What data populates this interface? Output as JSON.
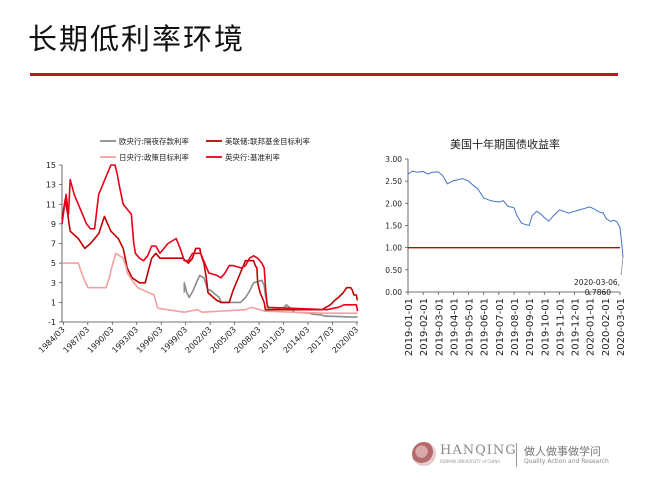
{
  "page": {
    "title": "长期低利率环境"
  },
  "footer": {
    "brand": "HANQING",
    "brand_sub": "RENMIN UNIVERSITY of CHINA",
    "slogan_cn": "做人做事做学问",
    "slogan_en": "Quality Action and Research"
  },
  "chart_data": [
    {
      "type": "line",
      "title": "",
      "xlabel": "",
      "ylabel": "",
      "ylim": [
        -1,
        15
      ],
      "yticks": [
        -1,
        1,
        3,
        5,
        7,
        9,
        11,
        13,
        15
      ],
      "x_ticks": [
        "1984/03",
        "1987/03",
        "1990/03",
        "1993/03",
        "1996/03",
        "1999/03",
        "2002/03",
        "2005/03",
        "2008/03",
        "2011/03",
        "2014/03",
        "2017/03",
        "2020/03"
      ],
      "legend_position": "top",
      "series": [
        {
          "name": "欧央行:隔夜存款利率",
          "color": "#8c8c8c",
          "x": [
            1999.0,
            1999.0,
            1999.3,
            1999.6,
            2000.1,
            2000.6,
            2000.9,
            2001.4,
            2001.9,
            2002.2,
            2002.9,
            2003.3,
            2003.5,
            2005.9,
            2006.2,
            2006.5,
            2006.9,
            2007.2,
            2007.5,
            2008.5,
            2008.8,
            2008.9,
            2009.1,
            2009.4,
            2011.3,
            2011.5,
            2011.9,
            2012.5,
            2014.4,
            2014.7,
            2015.9,
            2016.2,
            2019.7,
            2020.25
          ],
          "y": [
            2.0,
            3.0,
            2.0,
            1.5,
            2.25,
            3.25,
            3.75,
            3.5,
            2.25,
            2.25,
            1.75,
            1.5,
            1.0,
            1.0,
            1.25,
            1.5,
            2.0,
            2.5,
            3.0,
            3.25,
            2.75,
            2.0,
            1.0,
            0.25,
            0.5,
            0.75,
            0.5,
            0.0,
            -0.1,
            -0.2,
            -0.3,
            -0.4,
            -0.5,
            -0.5
          ]
        },
        {
          "name": "美联储:联邦基金目标利率",
          "color": "#c00000",
          "x": [
            1984.0,
            1984.4,
            1984.7,
            1985.0,
            1986.0,
            1986.8,
            1987.5,
            1988.5,
            1989.2,
            1989.6,
            1990.0,
            1990.9,
            1991.5,
            1992.0,
            1992.6,
            1993.5,
            1994.2,
            1994.6,
            1995.0,
            1995.5,
            1996.0,
            1998.8,
            1999.5,
            2000.0,
            2000.4,
            2000.9,
            2001.0,
            2001.4,
            2001.7,
            2001.9,
            2002.9,
            2003.5,
            2004.5,
            2005.0,
            2005.5,
            2006.0,
            2006.5,
            2007.5,
            2007.7,
            2007.9,
            2008.0,
            2008.3,
            2008.8,
            2008.95,
            2015.9,
            2016.9,
            2017.2,
            2017.5,
            2017.9,
            2018.2,
            2018.5,
            2018.9,
            2019.4,
            2019.6,
            2019.8,
            2020.1,
            2020.2,
            2020.25
          ],
          "y": [
            9.5,
            11.5,
            10.0,
            8.25,
            7.5,
            6.5,
            7.0,
            8.0,
            9.75,
            9.0,
            8.25,
            7.5,
            6.5,
            4.5,
            3.5,
            3.0,
            3.0,
            4.25,
            5.5,
            6.0,
            5.5,
            5.5,
            5.0,
            5.5,
            6.5,
            6.5,
            6.0,
            5.0,
            3.5,
            2.0,
            1.25,
            1.0,
            1.0,
            2.25,
            3.25,
            4.25,
            5.25,
            5.25,
            4.75,
            4.5,
            3.0,
            2.0,
            1.0,
            0.25,
            0.25,
            0.75,
            1.0,
            1.25,
            1.5,
            1.75,
            2.0,
            2.5,
            2.5,
            2.25,
            1.75,
            1.75,
            1.25,
            1.25
          ]
        },
        {
          "name": "日央行:政策目标利率",
          "color": "#f4a0a0",
          "x": [
            1984.0,
            1986.0,
            1986.2,
            1986.4,
            1986.9,
            1987.2,
            1989.4,
            1989.9,
            1990.0,
            1990.6,
            1991.5,
            1991.9,
            1992.0,
            1992.6,
            1993.3,
            1995.3,
            1995.7,
            1995.8,
            1999.0,
            2000.6,
            2001.2,
            2006.5,
            2007.2,
            2008.9,
            2016.1,
            2020.25
          ],
          "y": [
            5.0,
            5.0,
            4.5,
            4.0,
            3.0,
            2.5,
            2.5,
            3.75,
            4.25,
            6.0,
            5.5,
            4.5,
            4.0,
            3.25,
            2.5,
            1.75,
            0.5,
            0.4,
            0.0,
            0.25,
            0.0,
            0.25,
            0.5,
            0.1,
            -0.1,
            -0.1
          ]
        },
        {
          "name": "英央行:基准利率",
          "color": "#e8001b",
          "x": [
            1984.0,
            1984.5,
            1984.8,
            1985.0,
            1985.5,
            1986.0,
            1986.5,
            1987.0,
            1987.5,
            1988.0,
            1988.5,
            1989.0,
            1989.5,
            1990.0,
            1990.5,
            1990.8,
            1991.0,
            1991.5,
            1992.0,
            1992.5,
            1992.8,
            1993.0,
            1993.5,
            1994.0,
            1994.5,
            1995.0,
            1995.5,
            1996.0,
            1997.0,
            1997.5,
            1998.0,
            1998.5,
            1999.0,
            1999.5,
            2000.0,
            2001.0,
            2001.5,
            2002.0,
            2003.0,
            2003.5,
            2004.0,
            2004.5,
            2005.0,
            2006.0,
            2006.5,
            2007.0,
            2007.5,
            2008.0,
            2008.5,
            2008.8,
            2009.0,
            2009.2,
            2016.5,
            2017.9,
            2018.6,
            2020.1,
            2020.25
          ],
          "y": [
            9.0,
            12.0,
            10.0,
            13.5,
            12.0,
            11.0,
            10.0,
            9.0,
            8.5,
            8.5,
            12.0,
            13.0,
            14.0,
            15.0,
            15.0,
            14.0,
            13.0,
            11.0,
            10.5,
            10.0,
            7.0,
            6.0,
            5.5,
            5.25,
            5.75,
            6.75,
            6.75,
            6.0,
            7.0,
            7.25,
            7.5,
            6.5,
            5.25,
            5.25,
            6.0,
            6.0,
            5.0,
            4.0,
            3.75,
            3.5,
            4.0,
            4.75,
            4.75,
            4.5,
            4.75,
            5.5,
            5.75,
            5.5,
            5.0,
            4.5,
            2.0,
            0.5,
            0.25,
            0.5,
            0.75,
            0.75,
            0.1
          ]
        }
      ]
    },
    {
      "type": "line",
      "title": "美国十年期国债收益率",
      "xlabel": "",
      "ylabel": "",
      "ylim": [
        0,
        3
      ],
      "yticks": [
        "0.00",
        "0.50",
        "1.00",
        "1.50",
        "2.00",
        "2.50",
        "3.00"
      ],
      "x_ticks": [
        "2019-01-01",
        "2019-02-01",
        "2019-03-01",
        "2019-04-01",
        "2019-05-01",
        "2019-06-01",
        "2019-07-01",
        "2019-08-01",
        "2019-09-01",
        "2019-10-01",
        "2019-11-01",
        "2019-12-01",
        "2020-01-01",
        "2020-02-01",
        "2020-03-01"
      ],
      "reference_line": {
        "y": 1.0,
        "color": "#c00000"
      },
      "annotation": {
        "date": "2020-03-06,",
        "value": "0.7860"
      },
      "series": [
        {
          "name": "",
          "color": "#4472c4",
          "x_month_index": [
            0,
            0.3,
            0.6,
            1.0,
            1.3,
            1.6,
            2.0,
            2.3,
            2.6,
            3.0,
            3.3,
            3.6,
            4.0,
            4.3,
            4.6,
            5.0,
            5.3,
            5.6,
            6.0,
            6.3,
            6.6,
            7.0,
            7.2,
            7.5,
            7.7,
            8.0,
            8.2,
            8.5,
            8.8,
            9.0,
            9.3,
            9.6,
            10.0,
            10.3,
            10.6,
            11.0,
            11.3,
            11.6,
            12.0,
            12.3,
            12.6,
            12.9,
            13.1,
            13.4,
            13.6,
            13.8,
            14.0,
            14.1,
            14.15,
            14.2
          ],
          "values": [
            2.66,
            2.73,
            2.7,
            2.72,
            2.66,
            2.7,
            2.71,
            2.62,
            2.44,
            2.51,
            2.53,
            2.56,
            2.5,
            2.41,
            2.33,
            2.12,
            2.08,
            2.05,
            2.03,
            2.06,
            1.93,
            1.9,
            1.72,
            1.55,
            1.53,
            1.5,
            1.72,
            1.82,
            1.75,
            1.68,
            1.6,
            1.72,
            1.85,
            1.82,
            1.78,
            1.82,
            1.85,
            1.88,
            1.92,
            1.87,
            1.81,
            1.78,
            1.65,
            1.59,
            1.62,
            1.58,
            1.45,
            1.15,
            0.96,
            0.786
          ]
        }
      ]
    }
  ]
}
